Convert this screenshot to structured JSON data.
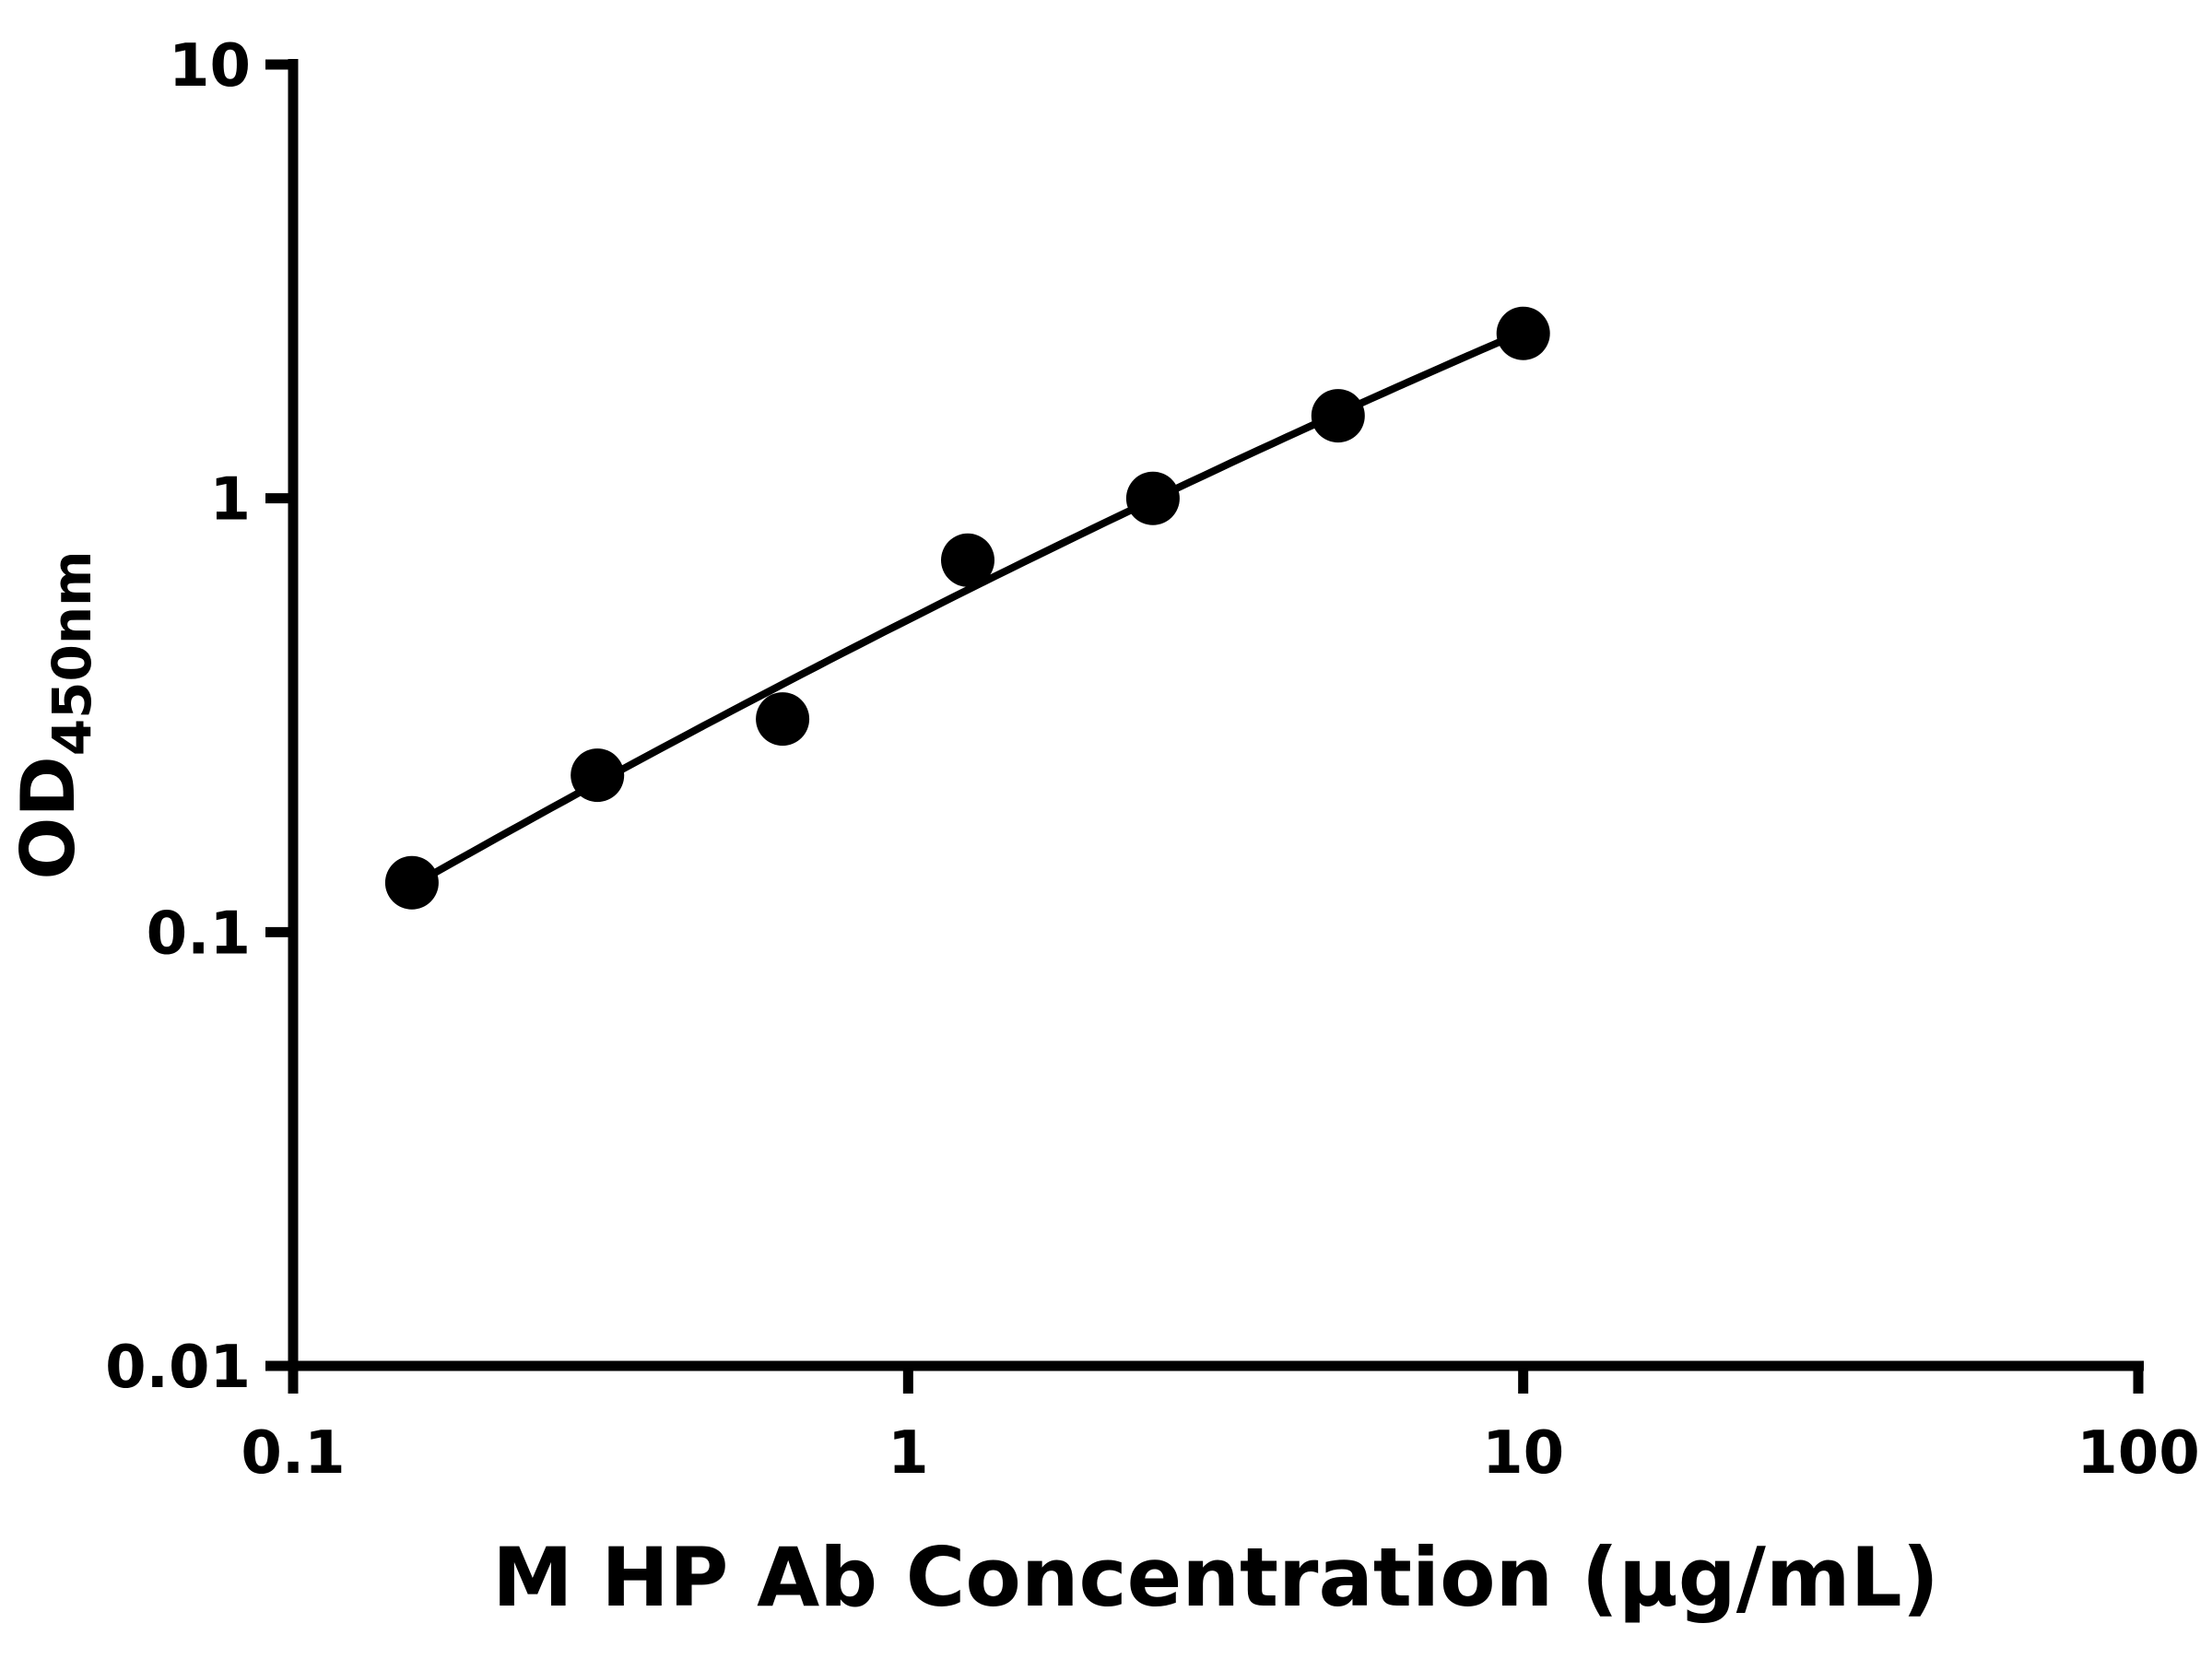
{
  "chart_data": {
    "type": "scatter",
    "title": "",
    "xlabel": "M HP Ab Concentration (μg/mL)",
    "ylabel_main": "OD",
    "ylabel_sub": "450nm",
    "x_scale": "log",
    "y_scale": "log",
    "xlim": [
      0.1,
      100
    ],
    "ylim": [
      0.01,
      10
    ],
    "x_ticks": [
      0.1,
      1,
      10,
      100
    ],
    "x_tick_labels": [
      "0.1",
      "1",
      "10",
      "100"
    ],
    "y_ticks": [
      0.01,
      0.1,
      1,
      10
    ],
    "y_tick_labels": [
      "0.01",
      "0.1",
      "1",
      "10"
    ],
    "grid": false,
    "legend": "none",
    "series": [
      {
        "name": "M HP Ab",
        "marker": "circle",
        "color": "#000000",
        "x": [
          0.156,
          0.3125,
          0.625,
          1.25,
          2.5,
          5,
          10
        ],
        "y": [
          0.13,
          0.23,
          0.31,
          0.72,
          1.0,
          1.55,
          2.4
        ]
      }
    ],
    "trend_line": {
      "type": "quadratic_loglog",
      "coeffs": {
        "a": -0.28,
        "b": 0.717,
        "c": -0.053
      },
      "x_range": [
        0.156,
        10
      ],
      "color": "#000000"
    },
    "colors": {
      "axis": "#000000",
      "marker": "#000000",
      "curve": "#000000",
      "background": "#ffffff"
    }
  }
}
